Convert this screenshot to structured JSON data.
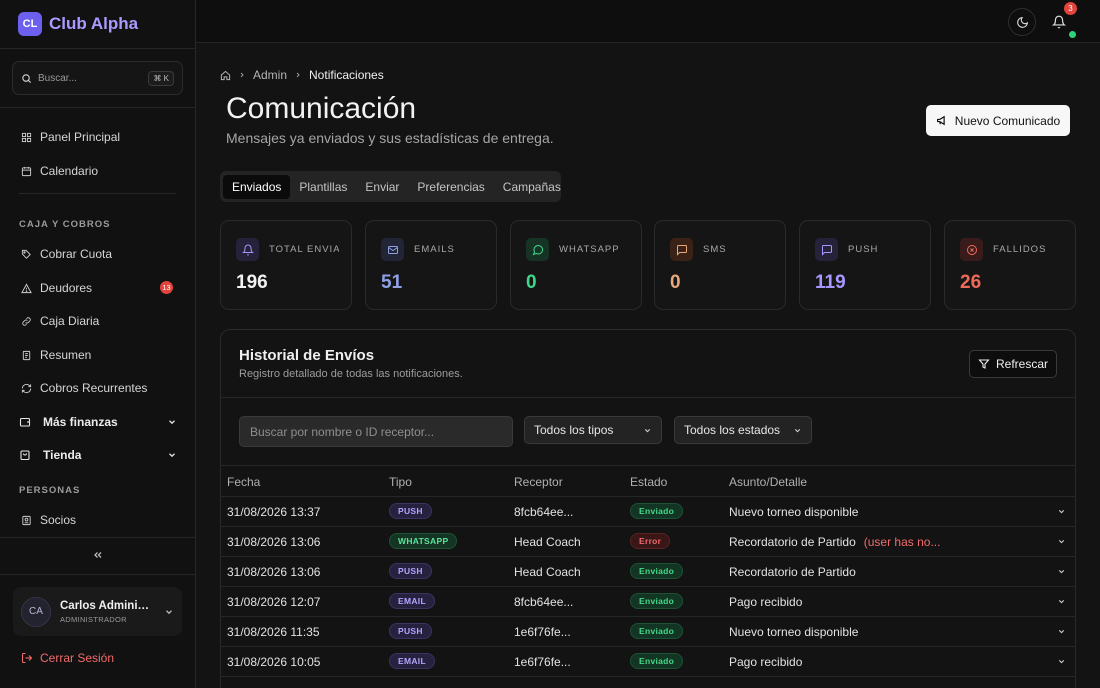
{
  "brand": {
    "logo": "CL",
    "name": "Club Alpha"
  },
  "sidebar": {
    "search_placeholder": "Buscar...",
    "search_shortcut": "⌘ K",
    "items_top": [
      {
        "label": "Panel Principal",
        "icon": "dashboard-icon"
      },
      {
        "label": "Calendario",
        "icon": "calendar-icon"
      }
    ],
    "section_caja": "CAJA Y COBROS",
    "items_caja": [
      {
        "label": "Cobrar Cuota",
        "icon": "tag-icon"
      },
      {
        "label": "Deudores",
        "icon": "alert-triangle-icon",
        "badge": "13"
      },
      {
        "label": "Caja Diaria",
        "icon": "link-icon"
      },
      {
        "label": "Resumen",
        "icon": "receipt-icon"
      },
      {
        "label": "Cobros Recurrentes",
        "icon": "refresh-icon"
      }
    ],
    "groups": [
      {
        "label": "Más finanzas",
        "icon": "wallet-icon"
      },
      {
        "label": "Tienda",
        "icon": "shopping-bag-icon"
      }
    ],
    "section_personas": "PERSONAS",
    "items_personas": [
      {
        "label": "Socios",
        "icon": "id-card-icon"
      }
    ],
    "user": {
      "initials": "CA",
      "name": "Carlos Administrador",
      "role": "ADMINISTRADOR"
    },
    "logout_label": "Cerrar Sesión"
  },
  "topbar": {
    "notification_count": "3"
  },
  "breadcrumb": {
    "parent": "Admin",
    "current": "Notificaciones"
  },
  "page": {
    "title": "Comunicación",
    "subtitle": "Mensajes ya enviados y sus estadísticas de entrega.",
    "new_button": "Nuevo Comunicado"
  },
  "tabs": [
    "Enviados",
    "Plantillas",
    "Enviar",
    "Preferencias",
    "Campañas"
  ],
  "stats": [
    {
      "label": "TOTAL ENVIADOS",
      "value": "196",
      "color": "#f2f2f2",
      "icon": "bell-icon",
      "bg": "#25223a"
    },
    {
      "label": "EMAILS",
      "value": "51",
      "color": "#8ea0e8",
      "icon": "mail-icon",
      "bg": "#222536"
    },
    {
      "label": "WHATSAPP",
      "value": "0",
      "color": "#3fd98a",
      "icon": "whatsapp-icon",
      "bg": "#173326"
    },
    {
      "label": "SMS",
      "value": "0",
      "color": "#e8a87c",
      "icon": "message-square-icon",
      "bg": "#3a2316"
    },
    {
      "label": "PUSH",
      "value": "119",
      "color": "#a897ff",
      "icon": "message-icon",
      "bg": "#25223a"
    },
    {
      "label": "FALLIDOS",
      "value": "26",
      "color": "#f06a5a",
      "icon": "x-circle-icon",
      "bg": "#3a1b1b"
    }
  ],
  "history": {
    "title": "Historial de Envíos",
    "subtitle": "Registro detallado de todas las notificaciones.",
    "refresh_label": "Refrescar",
    "search_placeholder": "Buscar por nombre o ID receptor...",
    "type_filter": "Todos los tipos",
    "status_filter": "Todos los estados",
    "columns": [
      "Fecha",
      "Tipo",
      "Receptor",
      "Estado",
      "Asunto/Detalle"
    ],
    "rows": [
      {
        "date": "31/08/2026 13:37",
        "type": "PUSH",
        "type_class": "push",
        "receiver": "8fcb64ee...",
        "status": "Enviado",
        "status_class": "ok",
        "subject": "Nuevo torneo disponible",
        "error": ""
      },
      {
        "date": "31/08/2026 13:06",
        "type": "WHATSAPP",
        "type_class": "whatsapp",
        "receiver": "Head Coach",
        "status": "Error",
        "status_class": "err",
        "subject": "Recordatorio de Partido",
        "error": "(user has no..."
      },
      {
        "date": "31/08/2026 13:06",
        "type": "PUSH",
        "type_class": "push",
        "receiver": "Head Coach",
        "status": "Enviado",
        "status_class": "ok",
        "subject": "Recordatorio de Partido",
        "error": ""
      },
      {
        "date": "31/08/2026 12:07",
        "type": "EMAIL",
        "type_class": "email",
        "receiver": "8fcb64ee...",
        "status": "Enviado",
        "status_class": "ok",
        "subject": "Pago recibido",
        "error": ""
      },
      {
        "date": "31/08/2026 11:35",
        "type": "PUSH",
        "type_class": "push",
        "receiver": "1e6f76fe...",
        "status": "Enviado",
        "status_class": "ok",
        "subject": "Nuevo torneo disponible",
        "error": ""
      },
      {
        "date": "31/08/2026 10:05",
        "type": "EMAIL",
        "type_class": "email",
        "receiver": "1e6f76fe...",
        "status": "Enviado",
        "status_class": "ok",
        "subject": "Pago recibido",
        "error": ""
      }
    ]
  }
}
